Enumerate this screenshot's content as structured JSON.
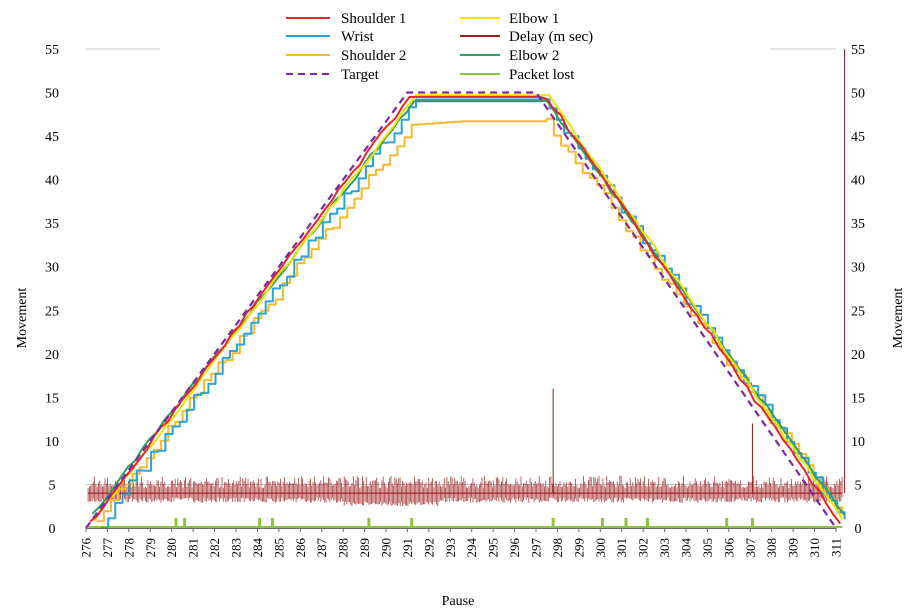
{
  "chart_data": {
    "type": "line",
    "xlabel": "Pause",
    "ylabel_left": "Movement",
    "ylabel_right": "Movement",
    "x_ticks": [
      276,
      277,
      278,
      279,
      280,
      281,
      282,
      283,
      284,
      285,
      286,
      287,
      288,
      289,
      290,
      291,
      292,
      293,
      294,
      295,
      296,
      297,
      298,
      299,
      300,
      301,
      302,
      303,
      304,
      305,
      306,
      307,
      308,
      309,
      310,
      311
    ],
    "x_range": [
      276,
      311
    ],
    "ylim": [
      0,
      55
    ],
    "y_ticks": [
      0,
      5,
      10,
      15,
      20,
      25,
      30,
      35,
      40,
      45,
      50,
      55
    ],
    "grid": "horizontal lines at 5 and 55 only",
    "legend": {
      "placement": "top-center, two columns",
      "entries": [
        {
          "name": "Shoulder 1",
          "color": "#e8262a",
          "style": "solid"
        },
        {
          "name": "Elbow 1",
          "color": "#f2e200",
          "style": "solid"
        },
        {
          "name": "Wrist",
          "color": "#2aa3d6",
          "style": "solid"
        },
        {
          "name": "Delay (m sec)",
          "color": "#9b1c1c",
          "style": "solid"
        },
        {
          "name": "Shoulder 2",
          "color": "#f6b92b",
          "style": "solid"
        },
        {
          "name": "Elbow 2",
          "color": "#2f9e62",
          "style": "solid"
        },
        {
          "name": "Target",
          "color": "#7a2aa0",
          "style": "dashed"
        },
        {
          "name": "Packet lost",
          "color": "#8cc43a",
          "style": "solid"
        }
      ]
    },
    "series": [
      {
        "name": "Target",
        "x": [
          276,
          291,
          297,
          311
        ],
        "y": [
          0,
          50,
          50,
          0
        ]
      },
      {
        "name": "Shoulder 1",
        "x": [
          276.2,
          291.1,
          297.5,
          311.2
        ],
        "y": [
          0.5,
          49.5,
          49.5,
          0.5
        ]
      },
      {
        "name": "Elbow 1",
        "x": [
          276.4,
          291.4,
          297.6,
          311.3
        ],
        "y": [
          1,
          49.7,
          49.7,
          1
        ]
      },
      {
        "name": "Wrist",
        "x": [
          276.7,
          291.4,
          297.3,
          311.4
        ],
        "y": [
          0.5,
          49.2,
          49.2,
          1
        ]
      },
      {
        "name": "Shoulder 2",
        "x": [
          276.5,
          291.2,
          293.5,
          297.5,
          311.3
        ],
        "y": [
          1,
          46.3,
          46.7,
          46.7,
          1.5
        ]
      },
      {
        "name": "Elbow 2",
        "x": [
          276.3,
          291.3,
          297.5,
          311.4
        ],
        "y": [
          1.5,
          49,
          49,
          1.5
        ]
      }
    ],
    "delay_baseline": 4,
    "delay_spikes": [
      {
        "x": 297.8,
        "y": 16
      },
      {
        "x": 307.1,
        "y": 12
      },
      {
        "x": 311.4,
        "y": 55
      }
    ],
    "packet_lost_markers_x": [
      280.2,
      280.6,
      284.1,
      284.7,
      289.2,
      291.2,
      297.8,
      300.1,
      301.2,
      302.2,
      305.9,
      307.1
    ]
  }
}
